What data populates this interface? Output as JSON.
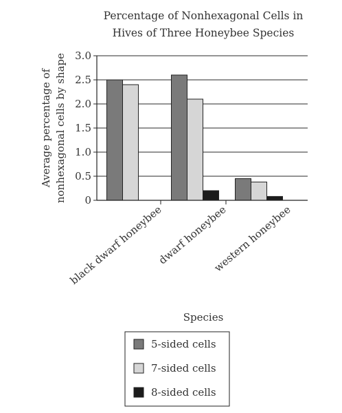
{
  "chart_data": {
    "type": "bar",
    "title_lines": [
      "Percentage of Nonhexagonal Cells in",
      "Hives of Three Honeybee Species"
    ],
    "ylabel_lines": [
      "Average percentage of",
      "nonhexagonal cells by shape"
    ],
    "xlabel": "Species",
    "categories": [
      "black dwarf honeybee",
      "dwarf honeybee",
      "western honeybee"
    ],
    "series": [
      {
        "name": "5-sided cells",
        "values": [
          2.5,
          2.6,
          0.45
        ],
        "color": "#7a7a7a"
      },
      {
        "name": "7-sided cells",
        "values": [
          2.4,
          2.1,
          0.38
        ],
        "color": "#d6d6d6"
      },
      {
        "name": "8-sided cells",
        "values": [
          0,
          0.2,
          0.08
        ],
        "color": "#1c1c1c"
      }
    ],
    "ylim": [
      0,
      3.0
    ],
    "yticks": [
      "0",
      "0.5",
      "1.0",
      "1.5",
      "2.0",
      "2.5",
      "3.0"
    ],
    "grid": true,
    "legend_position": "bottom"
  }
}
